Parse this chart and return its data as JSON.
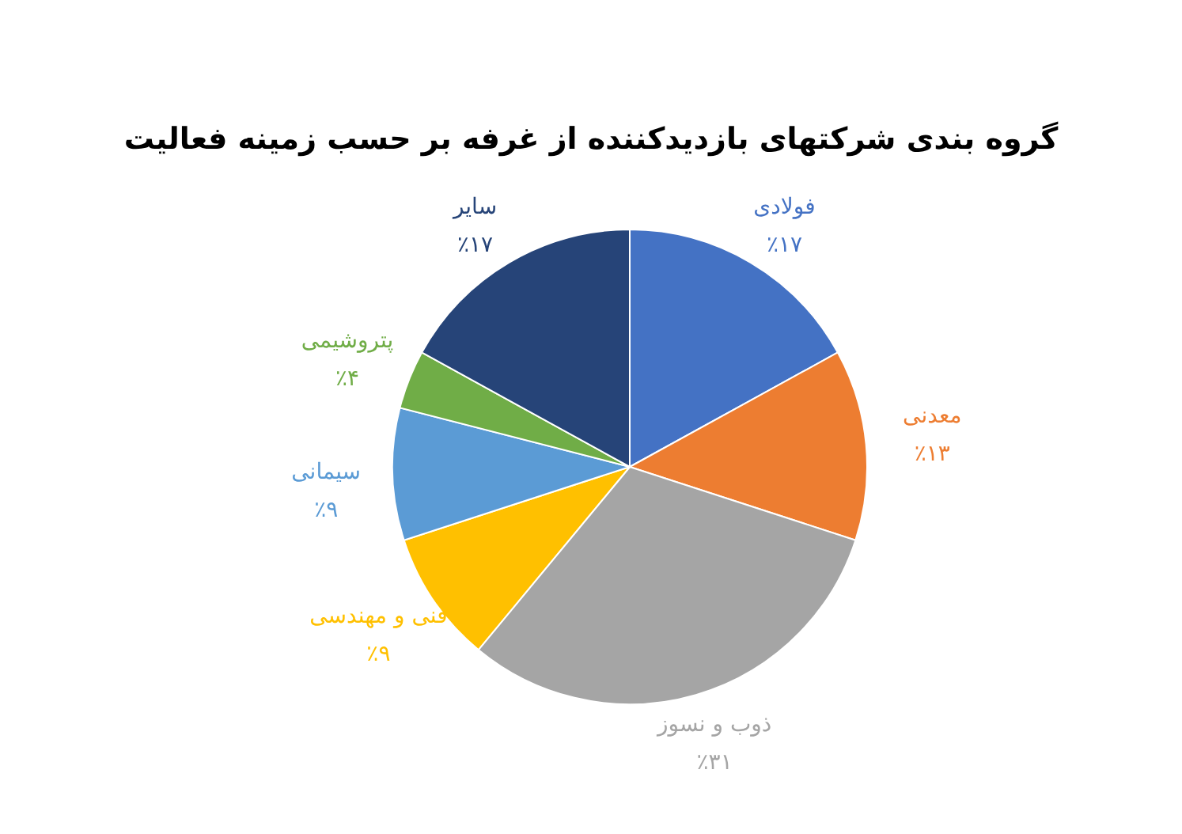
{
  "chart_data": {
    "type": "pie",
    "title": "گروه بندی شرکتهای بازدیدکننده از غرفه بر حسب زمینه فعالیت",
    "categories": [
      "فولادی",
      "معدنی",
      "ذوب و نسوز",
      "فنی و مهندسی",
      "سیمانی",
      "پتروشیمی",
      "سایر"
    ],
    "values": [
      17,
      13,
      31,
      9,
      9,
      4,
      17
    ],
    "colors": [
      "#4472c4",
      "#ed7d31",
      "#a5a5a5",
      "#ffc000",
      "#5b9bd5",
      "#70ad47",
      "#264478"
    ],
    "value_labels": [
      "٪۱۷",
      "٪۱۳",
      "٪۳۱",
      "٪۹",
      "٪۹",
      "٪۴",
      "٪۱۷"
    ],
    "legend": false
  }
}
